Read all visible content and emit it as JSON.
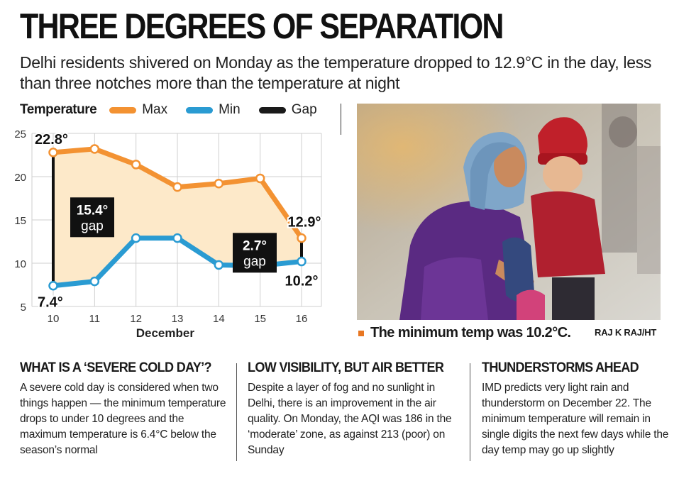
{
  "headline": "THREE DEGREES OF SEPARATION",
  "subhead": "Delhi residents shivered on Monday as the temperature dropped to 12.9°C in the day, less than three notches more than the temperature at night",
  "legend": {
    "title": "Temperature",
    "items": [
      {
        "label": "Max",
        "color": "#f39232"
      },
      {
        "label": "Min",
        "color": "#2a9bd2"
      },
      {
        "label": "Gap",
        "color": "#1a1a1a"
      }
    ]
  },
  "chart_data": {
    "type": "line",
    "x": [
      10,
      11,
      12,
      13,
      14,
      15,
      16
    ],
    "xlabel": "December",
    "ylabel": "",
    "ylim": [
      5,
      25
    ],
    "yticks": [
      5,
      10,
      15,
      20,
      25
    ],
    "grid": true,
    "series": [
      {
        "name": "Max",
        "color": "#f39232",
        "values": [
          22.8,
          23.2,
          21.4,
          18.8,
          19.2,
          19.8,
          12.9
        ]
      },
      {
        "name": "Min",
        "color": "#2a9bd2",
        "values": [
          7.4,
          7.9,
          12.9,
          12.9,
          9.8,
          9.7,
          10.2
        ]
      }
    ],
    "fill_color": "#fde9c9",
    "gaps": [
      {
        "x": 10,
        "high": 22.8,
        "low": 7.4,
        "label_value": "15.4°",
        "label_word": "gap"
      },
      {
        "x": 16,
        "high": 12.9,
        "low": 10.2,
        "label_value": "2.7°",
        "label_word": "gap"
      }
    ],
    "data_labels": [
      {
        "text": "22.8°",
        "x": 10,
        "y": 22.8
      },
      {
        "text": "7.4°",
        "x": 10,
        "y": 7.4
      },
      {
        "text": "12.9°",
        "x": 16,
        "y": 12.9
      },
      {
        "text": "10.2°",
        "x": 16,
        "y": 10.2
      }
    ]
  },
  "photo": {
    "caption": "The minimum temp was 10.2°C.",
    "credit": "RAJ K RAJ/HT"
  },
  "columns": [
    {
      "title": "WHAT IS A ‘SEVERE COLD DAY’?",
      "body": "A severe cold day is considered when two things happen — the minimum temperature drops to under 10 degrees and the maximum temperature is 6.4°C below the season’s normal"
    },
    {
      "title": "LOW VISIBILITY, BUT AIR BETTER",
      "body": "Despite a layer of fog and no sunlight in Delhi, there is an improvement in the air quality. On Monday, the AQI was 186 in the ‘moderate’ zone, as against 213 (poor) on Sunday"
    },
    {
      "title": "THUNDERSTORMS AHEAD",
      "body": "IMD predicts very light rain and thunderstorm on December 22. The minimum temperature will remain in single digits the next few days while the day temp may go up slightly"
    }
  ]
}
